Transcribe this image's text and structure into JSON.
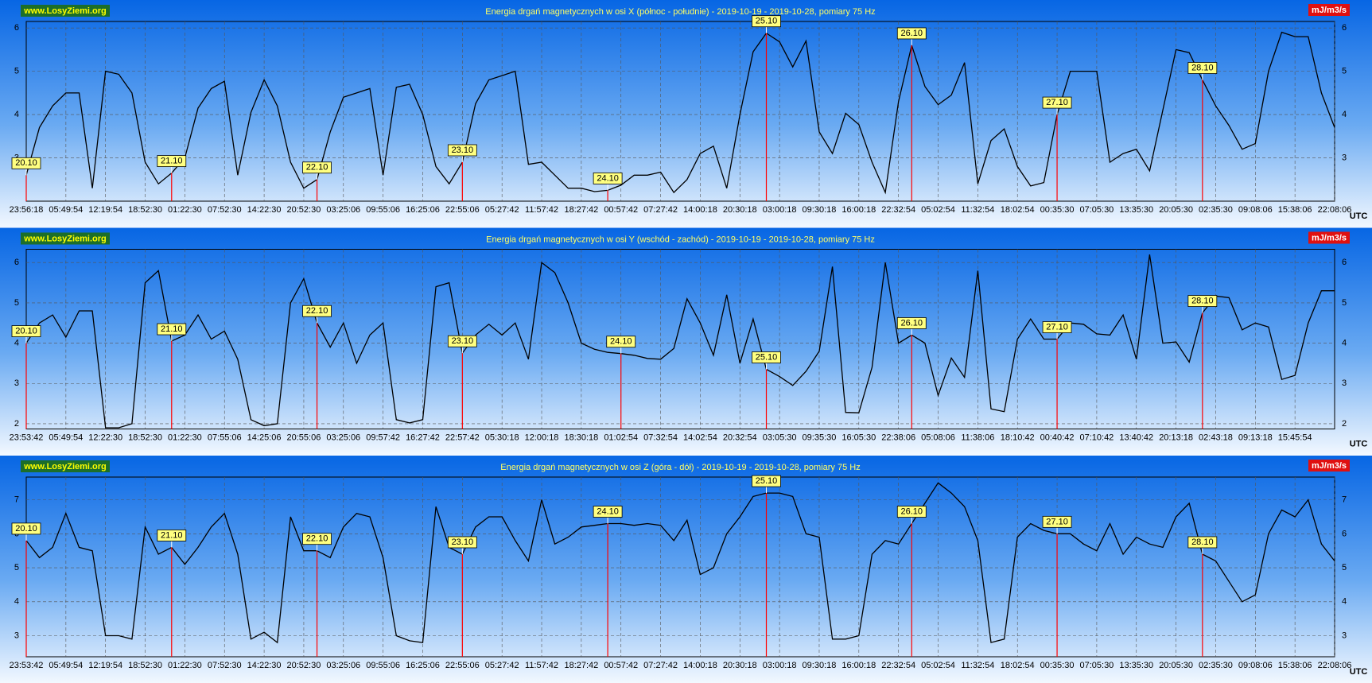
{
  "chart_data": [
    {
      "type": "line",
      "title": "Energia drgań magnetycznych w osi X (północ - południe) - 2019-10-19 - 2019-10-28, pomiary 75 Hz",
      "logo": "www.LosyZiemi.org",
      "unit": "mJ/m3/s",
      "x_label": "UTC",
      "color": "#000000",
      "marker_color": "#ff0000",
      "grid": true,
      "ylim": [
        2,
        6.15
      ],
      "yticks": [
        3,
        4,
        5,
        6
      ],
      "xticks": [
        "23:56:18",
        "05:49:54",
        "12:19:54",
        "18:52:30",
        "01:22:30",
        "07:52:30",
        "14:22:30",
        "20:52:30",
        "03:25:06",
        "09:55:06",
        "16:25:06",
        "22:55:06",
        "05:27:42",
        "11:57:42",
        "18:27:42",
        "00:57:42",
        "07:27:42",
        "14:00:18",
        "20:30:18",
        "03:00:18",
        "09:30:18",
        "16:00:18",
        "22:32:54",
        "05:02:54",
        "11:32:54",
        "18:02:54",
        "00:35:30",
        "07:05:30",
        "13:35:30",
        "20:05:30",
        "02:35:30",
        "09:08:06",
        "15:38:06",
        "22:08:06"
      ],
      "values": [
        2.6,
        3.7,
        4.2,
        4.5,
        4.5,
        2.3,
        5.0,
        4.93,
        4.5,
        2.9,
        2.4,
        2.65,
        3.0,
        4.15,
        4.6,
        4.77,
        2.6,
        4.05,
        4.8,
        4.2,
        2.9,
        2.3,
        2.5,
        3.6,
        4.4,
        4.5,
        4.6,
        2.6,
        4.63,
        4.7,
        4.0,
        2.8,
        2.4,
        2.9,
        4.25,
        4.8,
        4.9,
        5.0,
        2.85,
        2.9,
        2.6,
        2.3,
        2.3,
        2.22,
        2.25,
        2.37,
        2.6,
        2.6,
        2.67,
        2.2,
        2.5,
        3.1,
        3.27,
        2.3,
        4.0,
        5.45,
        5.88,
        5.68,
        5.1,
        5.7,
        3.6,
        3.1,
        4.03,
        3.77,
        2.9,
        2.2,
        4.3,
        5.6,
        4.65,
        4.23,
        4.45,
        5.2,
        2.4,
        3.4,
        3.67,
        2.8,
        2.35,
        2.43,
        4.0,
        5.0,
        5.0,
        5.0,
        2.9,
        3.1,
        3.2,
        2.7,
        4.1,
        5.5,
        5.43,
        4.8,
        4.2,
        3.75,
        3.2,
        3.33,
        5.0,
        5.9,
        5.8,
        5.8,
        4.5,
        3.7
      ],
      "annotations": [
        {
          "text": "20.10",
          "index": 0
        },
        {
          "text": "21.10",
          "index": 11
        },
        {
          "text": "22.10",
          "index": 22
        },
        {
          "text": "23.10",
          "index": 33
        },
        {
          "text": "24.10",
          "index": 44
        },
        {
          "text": "25.10",
          "index": 56
        },
        {
          "text": "26.10",
          "index": 67
        },
        {
          "text": "27.10",
          "index": 78
        },
        {
          "text": "28.10",
          "index": 89
        }
      ]
    },
    {
      "type": "line",
      "title": "Energia drgań magnetycznych w osi Y (wschód - zachód) - 2019-10-19 - 2019-10-28, pomiary 75 Hz",
      "logo": "www.LosyZiemi.org",
      "unit": "mJ/m3/s",
      "x_label": "UTC",
      "color": "#000000",
      "marker_color": "#ff0000",
      "grid": true,
      "ylim": [
        1.87,
        6.33
      ],
      "yticks": [
        2,
        3,
        4,
        5,
        6
      ],
      "xticks": [
        "23:53:42",
        "05:49:54",
        "12:22:30",
        "18:52:30",
        "01:22:30",
        "07:55:06",
        "14:25:06",
        "20:55:06",
        "03:25:06",
        "09:57:42",
        "16:27:42",
        "22:57:42",
        "05:30:18",
        "12:00:18",
        "18:30:18",
        "01:02:54",
        "07:32:54",
        "14:02:54",
        "20:32:54",
        "03:05:30",
        "09:35:30",
        "16:05:30",
        "22:38:06",
        "05:08:06",
        "11:38:06",
        "18:10:42",
        "00:40:42",
        "07:10:42",
        "13:40:42",
        "20:13:18",
        "02:43:18",
        "09:13:18",
        "15:45:54"
      ],
      "values": [
        4.0,
        4.5,
        4.7,
        4.15,
        4.8,
        4.8,
        1.9,
        1.9,
        2.0,
        5.5,
        5.8,
        4.05,
        4.2,
        4.7,
        4.1,
        4.3,
        3.6,
        2.1,
        1.95,
        2.0,
        5.0,
        5.6,
        4.5,
        3.9,
        4.5,
        3.5,
        4.2,
        4.5,
        2.1,
        2.02,
        2.1,
        5.4,
        5.5,
        3.75,
        4.2,
        4.47,
        4.2,
        4.5,
        3.6,
        6.0,
        5.75,
        5.0,
        4.0,
        3.85,
        3.77,
        3.74,
        3.7,
        3.62,
        3.6,
        3.87,
        5.1,
        4.5,
        3.7,
        5.2,
        3.5,
        4.6,
        3.35,
        3.17,
        2.95,
        3.3,
        3.8,
        5.9,
        2.28,
        2.27,
        3.4,
        6.0,
        4.0,
        4.2,
        4.0,
        2.7,
        3.63,
        3.15,
        5.8,
        2.37,
        2.3,
        4.1,
        4.6,
        4.1,
        4.1,
        4.5,
        4.47,
        4.23,
        4.2,
        4.7,
        3.6,
        6.2,
        4.0,
        4.03,
        3.53,
        4.75,
        5.17,
        5.13,
        4.33,
        4.5,
        4.4,
        3.1,
        3.2,
        4.5,
        5.3,
        5.3
      ],
      "annotations": [
        {
          "text": "20.10",
          "index": 0
        },
        {
          "text": "21.10",
          "index": 11
        },
        {
          "text": "22.10",
          "index": 22
        },
        {
          "text": "23.10",
          "index": 33
        },
        {
          "text": "24.10",
          "index": 45
        },
        {
          "text": "25.10",
          "index": 56
        },
        {
          "text": "26.10",
          "index": 67
        },
        {
          "text": "27.10",
          "index": 78
        },
        {
          "text": "28.10",
          "index": 89
        }
      ]
    },
    {
      "type": "line",
      "title": "Energia drgań magnetycznych w osi Z (góra - dół) - 2019-10-19 - 2019-10-28, pomiary 75 Hz",
      "logo": "www.LosyZiemi.org",
      "unit": "mJ/m3/s",
      "x_label": "UTC",
      "color": "#000000",
      "marker_color": "#ff0000",
      "grid": true,
      "ylim": [
        2.38,
        7.67
      ],
      "yticks": [
        3,
        4,
        5,
        6,
        7
      ],
      "xticks": [
        "23:53:42",
        "05:49:54",
        "12:19:54",
        "18:52:30",
        "01:22:30",
        "07:52:30",
        "14:22:30",
        "20:52:30",
        "03:25:06",
        "09:55:06",
        "16:25:06",
        "22:55:06",
        "05:27:42",
        "11:57:42",
        "18:27:42",
        "00:57:42",
        "07:27:42",
        "14:00:18",
        "20:30:18",
        "03:00:18",
        "09:30:18",
        "16:00:18",
        "22:32:54",
        "05:02:54",
        "11:32:54",
        "18:02:54",
        "00:35:30",
        "07:05:30",
        "13:35:30",
        "20:05:30",
        "02:35:30",
        "09:08:06",
        "15:38:06",
        "22:08:06"
      ],
      "values": [
        5.8,
        5.3,
        5.6,
        6.6,
        5.6,
        5.5,
        3.0,
        3.0,
        2.9,
        6.2,
        5.4,
        5.6,
        5.1,
        5.6,
        6.2,
        6.6,
        5.4,
        2.9,
        3.1,
        2.8,
        6.5,
        5.5,
        5.5,
        5.3,
        6.2,
        6.6,
        6.5,
        5.3,
        3.0,
        2.85,
        2.8,
        6.8,
        5.6,
        5.4,
        6.2,
        6.5,
        6.5,
        5.8,
        5.2,
        7.0,
        5.7,
        5.9,
        6.2,
        6.25,
        6.3,
        6.3,
        6.25,
        6.3,
        6.25,
        5.8,
        6.4,
        4.8,
        5.0,
        6.0,
        6.5,
        7.1,
        7.2,
        7.2,
        7.1,
        6.0,
        5.9,
        2.9,
        2.9,
        3.0,
        5.4,
        5.8,
        5.7,
        6.3,
        6.9,
        7.5,
        7.2,
        6.8,
        5.8,
        2.8,
        2.9,
        5.9,
        6.3,
        6.1,
        6.0,
        6.0,
        5.7,
        5.5,
        6.3,
        5.4,
        5.9,
        5.7,
        5.6,
        6.5,
        6.9,
        5.4,
        5.2,
        4.6,
        4.0,
        4.2,
        6.0,
        6.7,
        6.5,
        7.0,
        5.7,
        5.2
      ],
      "annotations": [
        {
          "text": "20.10",
          "index": 0
        },
        {
          "text": "21.10",
          "index": 11
        },
        {
          "text": "22.10",
          "index": 22
        },
        {
          "text": "23.10",
          "index": 33
        },
        {
          "text": "24.10",
          "index": 44
        },
        {
          "text": "25.10",
          "index": 56
        },
        {
          "text": "26.10",
          "index": 67
        },
        {
          "text": "27.10",
          "index": 78
        },
        {
          "text": "28.10",
          "index": 89
        }
      ]
    }
  ]
}
